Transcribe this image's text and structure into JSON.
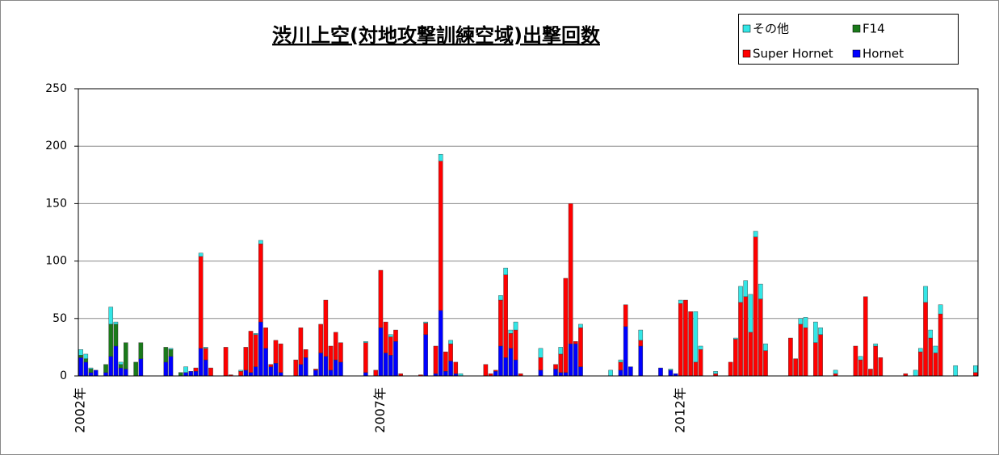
{
  "chart_data": {
    "type": "stacked_bar",
    "title": "渋川上空(対地攻撃訓練空域)出撃回数",
    "categories": [
      "2002年",
      null,
      null,
      null,
      null,
      null,
      null,
      null,
      null,
      null,
      null,
      null,
      null,
      null,
      null,
      null,
      null,
      null,
      null,
      null,
      null,
      null,
      null,
      null,
      null,
      null,
      null,
      null,
      null,
      null,
      null,
      null,
      null,
      null,
      null,
      null,
      null,
      null,
      null,
      null,
      null,
      null,
      null,
      null,
      null,
      null,
      null,
      null,
      null,
      null,
      null,
      null,
      null,
      null,
      null,
      null,
      null,
      null,
      null,
      null,
      "2007年",
      null,
      null,
      null,
      null,
      null,
      null,
      null,
      null,
      null,
      null,
      null,
      null,
      null,
      null,
      null,
      null,
      null,
      null,
      null,
      null,
      null,
      null,
      null,
      null,
      null,
      null,
      null,
      null,
      null,
      null,
      null,
      null,
      null,
      null,
      null,
      null,
      null,
      null,
      null,
      null,
      null,
      null,
      null,
      null,
      null,
      null,
      null,
      null,
      null,
      null,
      null,
      null,
      null,
      null,
      null,
      null,
      null,
      null,
      null,
      "2012年",
      null,
      null,
      null,
      null,
      null,
      null,
      null,
      null,
      null,
      null,
      null,
      null,
      null,
      null,
      null,
      null,
      null,
      null,
      null,
      null,
      null,
      null,
      null,
      null,
      null,
      null,
      null,
      null,
      null,
      null,
      null,
      null,
      null,
      null,
      null,
      null,
      null,
      null,
      null,
      null,
      null,
      null,
      null,
      null,
      null,
      null,
      null,
      null,
      null,
      null,
      null,
      null,
      null,
      null,
      null,
      null,
      null,
      null,
      null
    ],
    "series": [
      {
        "name": "Hornet",
        "color": "#0000ff",
        "values": [
          16,
          12,
          3,
          5,
          0,
          3,
          17,
          26,
          7,
          6,
          0,
          0,
          15,
          0,
          0,
          0,
          0,
          12,
          17,
          0,
          0,
          3,
          4,
          4,
          24,
          14,
          0,
          0,
          0,
          0,
          0,
          0,
          0,
          5,
          3,
          8,
          47,
          24,
          8,
          11,
          3,
          0,
          0,
          0,
          10,
          16,
          0,
          5,
          20,
          17,
          5,
          14,
          12,
          0,
          0,
          0,
          0,
          3,
          0,
          0,
          42,
          20,
          18,
          30,
          0,
          0,
          0,
          0,
          0,
          36,
          0,
          2,
          57,
          4,
          13,
          2,
          0,
          0,
          0,
          0,
          0,
          0,
          0,
          4,
          26,
          16,
          24,
          14,
          0,
          0,
          0,
          0,
          5,
          0,
          0,
          6,
          3,
          3,
          28,
          28,
          8,
          0,
          0,
          0,
          0,
          0,
          0,
          0,
          5,
          43,
          8,
          0,
          26,
          0,
          0,
          0,
          7,
          0,
          5,
          2,
          0,
          0,
          0,
          0,
          0,
          0,
          0,
          0,
          0,
          0,
          0,
          0,
          0,
          0,
          0,
          0,
          0,
          0,
          0,
          0,
          0,
          0,
          0,
          0,
          0,
          0,
          0,
          0,
          0,
          0,
          0,
          0,
          0,
          0,
          0,
          0,
          0,
          0,
          0,
          0,
          0,
          0,
          0,
          0,
          0,
          0,
          0,
          0,
          0,
          0,
          0,
          0,
          0,
          0,
          0,
          0,
          0,
          0,
          0,
          0
        ]
      },
      {
        "name": "Super Hornet",
        "color": "#ff0000",
        "values": [
          0,
          0,
          0,
          0,
          0,
          0,
          0,
          0,
          0,
          0,
          0,
          0,
          0,
          0,
          0,
          0,
          0,
          0,
          0,
          0,
          0,
          0,
          0,
          3,
          80,
          10,
          7,
          0,
          0,
          25,
          1,
          0,
          4,
          20,
          36,
          28,
          68,
          18,
          2,
          20,
          25,
          0,
          0,
          14,
          32,
          7,
          0,
          1,
          25,
          49,
          21,
          24,
          17,
          0,
          0,
          0,
          0,
          26,
          0,
          5,
          50,
          27,
          16,
          10,
          2,
          0,
          0,
          0,
          1,
          10,
          0,
          24,
          130,
          17,
          15,
          10,
          0,
          0,
          0,
          0,
          0,
          10,
          2,
          1,
          40,
          72,
          13,
          26,
          2,
          0,
          0,
          0,
          11,
          0,
          0,
          4,
          16,
          82,
          122,
          2,
          34,
          0,
          0,
          0,
          0,
          0,
          0,
          0,
          7,
          19,
          0,
          0,
          5,
          0,
          0,
          0,
          0,
          0,
          0,
          0,
          63,
          66,
          56,
          12,
          23,
          0,
          0,
          2,
          0,
          0,
          12,
          32,
          64,
          69,
          38,
          121,
          67,
          22,
          0,
          0,
          0,
          0,
          33,
          15,
          45,
          42,
          0,
          29,
          36,
          0,
          0,
          2,
          0,
          0,
          0,
          26,
          14,
          69,
          6,
          26,
          16,
          0,
          0,
          0,
          0,
          2,
          0,
          0,
          21,
          64,
          33,
          20,
          54,
          0,
          0,
          0,
          0,
          0,
          0,
          3
        ]
      },
      {
        "name": "F14",
        "color": "#1a7a1a",
        "values": [
          2,
          3,
          3,
          0,
          0,
          7,
          28,
          19,
          3,
          23,
          0,
          12,
          14,
          0,
          0,
          0,
          0,
          13,
          6,
          0,
          3,
          0,
          0,
          0,
          0,
          0,
          0,
          0,
          0,
          0,
          0,
          0,
          0,
          0,
          0,
          0,
          0,
          0,
          0,
          0,
          0,
          0,
          0,
          0,
          0,
          0,
          0,
          0,
          0,
          0,
          0,
          0,
          0,
          0,
          0,
          0,
          0,
          0,
          0,
          0,
          0,
          0,
          0,
          0,
          0,
          0,
          0,
          0,
          0,
          0,
          0,
          0,
          0,
          0,
          0,
          0,
          0,
          0,
          0,
          0,
          0,
          0,
          0,
          0,
          0,
          0,
          0,
          0,
          0,
          0,
          0,
          0,
          0,
          0,
          0,
          0,
          0,
          0,
          0,
          0,
          0,
          0,
          0,
          0,
          0,
          0,
          0,
          0,
          0,
          0,
          0,
          0,
          0,
          0,
          0,
          0,
          0,
          0,
          0,
          0,
          0,
          0,
          0,
          0,
          0,
          0,
          0,
          0,
          0,
          0,
          0,
          0,
          0,
          0,
          0,
          0,
          0,
          0,
          0,
          0,
          0,
          0,
          0,
          0,
          0,
          0,
          0,
          0,
          0,
          0,
          0,
          0,
          0,
          0,
          0,
          0,
          0,
          0,
          0,
          0,
          0,
          0,
          0,
          0,
          0,
          0,
          0,
          0,
          0,
          0,
          0,
          0,
          0,
          0,
          0,
          0,
          0,
          0,
          0,
          0
        ]
      },
      {
        "name": "その他",
        "color": "#33e6e6",
        "values": [
          5,
          4,
          1,
          0,
          0,
          0,
          15,
          2,
          2,
          0,
          0,
          0,
          0,
          0,
          0,
          0,
          0,
          0,
          1,
          0,
          0,
          5,
          0,
          0,
          3,
          1,
          0,
          0,
          0,
          0,
          0,
          0,
          1,
          0,
          0,
          1,
          3,
          0,
          0,
          0,
          0,
          0,
          0,
          0,
          0,
          0,
          0,
          0,
          0,
          0,
          0,
          0,
          0,
          0,
          0,
          0,
          0,
          1,
          0,
          0,
          0,
          0,
          2,
          0,
          0,
          0,
          0,
          0,
          0,
          1,
          0,
          0,
          6,
          0,
          3,
          0,
          2,
          0,
          0,
          0,
          0,
          0,
          0,
          0,
          4,
          6,
          3,
          7,
          0,
          0,
          0,
          0,
          8,
          0,
          0,
          0,
          6,
          0,
          0,
          0,
          3,
          0,
          0,
          0,
          0,
          0,
          5,
          0,
          2,
          0,
          0,
          0,
          9,
          0,
          0,
          0,
          0,
          0,
          1,
          0,
          3,
          0,
          0,
          44,
          3,
          0,
          0,
          2,
          0,
          0,
          0,
          1,
          14,
          14,
          33,
          5,
          13,
          6,
          0,
          0,
          0,
          0,
          0,
          0,
          5,
          9,
          0,
          18,
          6,
          0,
          0,
          3,
          0,
          0,
          0,
          0,
          3,
          0,
          0,
          2,
          0,
          0,
          0,
          0,
          0,
          0,
          0,
          5,
          3,
          14,
          7,
          6,
          8,
          0,
          0,
          9,
          0,
          0,
          0,
          6
        ]
      }
    ],
    "ylim": [
      0,
      250
    ],
    "yticks": [
      0,
      50,
      100,
      150,
      200,
      250
    ],
    "grid": true
  }
}
